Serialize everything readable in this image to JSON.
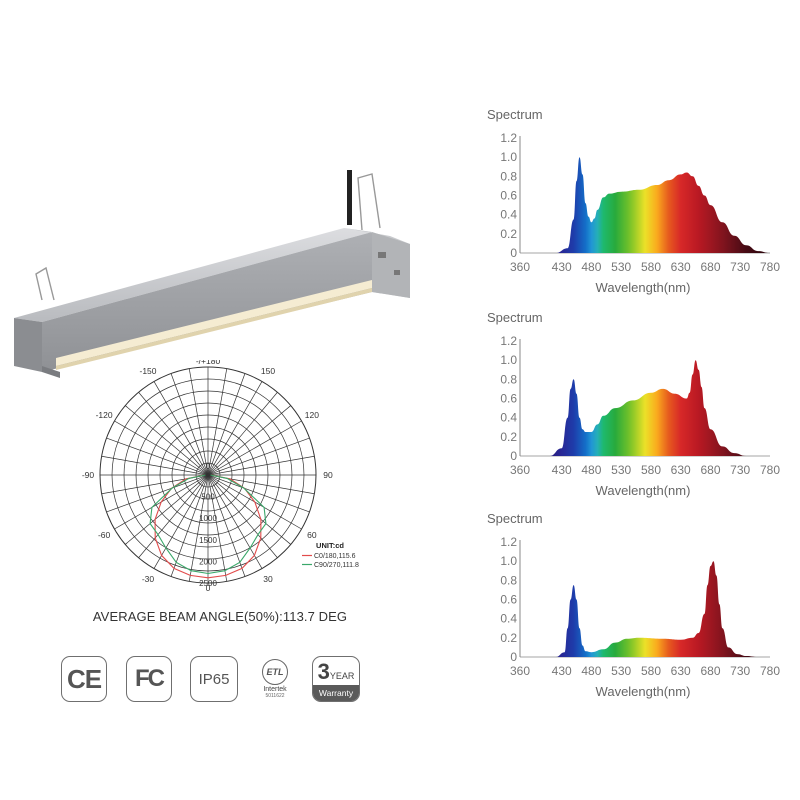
{
  "beam_angle_text": "AVERAGE BEAM ANGLE(50%):113.7 DEG",
  "certifications": {
    "ce": "CE",
    "fc": "FC",
    "ip": "IP65",
    "etl_mark": "ETL",
    "etl_label": "Intertek",
    "etl_number": "5011622",
    "warranty_number": "3",
    "warranty_year": "YEAR",
    "warranty_label": "Warranty"
  },
  "chart_data": [
    {
      "type": "polar",
      "angle_labels": [
        {
          "angle": 180,
          "label": "-/+180"
        },
        {
          "angle": 150,
          "label": "150"
        },
        {
          "angle": 120,
          "label": "120"
        },
        {
          "angle": 90,
          "label": "90"
        },
        {
          "angle": 60,
          "label": "60"
        },
        {
          "angle": 30,
          "label": "30"
        },
        {
          "angle": 0,
          "label": "0"
        },
        {
          "angle": -30,
          "label": "-30"
        },
        {
          "angle": -60,
          "label": "-60"
        },
        {
          "angle": -90,
          "label": "-90"
        },
        {
          "angle": -120,
          "label": "-120"
        },
        {
          "angle": -150,
          "label": "-150"
        }
      ],
      "radial_labels": [
        "0",
        "500",
        "1000",
        "1500",
        "2000",
        "2500"
      ],
      "rmax": 2500,
      "unit_label": "UNIT:cd",
      "series": [
        {
          "name": "C0/180,115.6",
          "color": "#e24b4b",
          "angle": [
            -90,
            -80,
            -70,
            -60,
            -50,
            -40,
            -30,
            -20,
            -10,
            0,
            10,
            20,
            30,
            40,
            50,
            60,
            70,
            80,
            90
          ],
          "r": [
            80,
            520,
            900,
            1250,
            1600,
            1900,
            2150,
            2300,
            2360,
            2380,
            2360,
            2300,
            2150,
            1900,
            1600,
            1250,
            900,
            520,
            80
          ]
        },
        {
          "name": "C90/270,111.8",
          "color": "#3aa86a",
          "angle": [
            -90,
            -80,
            -70,
            -60,
            -50,
            -40,
            -30,
            -20,
            -10,
            0,
            10,
            20,
            30,
            40,
            50,
            60,
            70,
            80,
            90
          ],
          "r": [
            60,
            450,
            880,
            1500,
            1750,
            1800,
            1950,
            2150,
            2250,
            2280,
            2250,
            2150,
            1950,
            1800,
            1750,
            1500,
            880,
            450,
            60
          ]
        }
      ]
    },
    {
      "type": "area",
      "title": "Spectrum",
      "xlabel": "Wavelength(nm)",
      "x_ticks": [
        360,
        430,
        480,
        530,
        580,
        630,
        680,
        730,
        780
      ],
      "y_ticks": [
        "0",
        "0.2",
        "0.4",
        "0.6",
        "0.8",
        "1.0",
        "1.2"
      ],
      "ylim": [
        0,
        1.2
      ],
      "x": [
        420,
        440,
        450,
        455,
        460,
        465,
        470,
        475,
        480,
        485,
        490,
        500,
        510,
        530,
        560,
        590,
        610,
        630,
        640,
        650,
        660,
        670,
        680,
        700,
        720,
        740,
        760,
        780
      ],
      "y": [
        0,
        0.05,
        0.35,
        0.75,
        1.0,
        0.82,
        0.52,
        0.38,
        0.32,
        0.36,
        0.45,
        0.58,
        0.62,
        0.64,
        0.66,
        0.71,
        0.76,
        0.82,
        0.84,
        0.8,
        0.7,
        0.6,
        0.5,
        0.32,
        0.18,
        0.08,
        0.02,
        0
      ]
    },
    {
      "type": "area",
      "title": "Spectrum",
      "xlabel": "Wavelength(nm)",
      "x_ticks": [
        360,
        430,
        480,
        530,
        580,
        630,
        680,
        730,
        780
      ],
      "y_ticks": [
        "0",
        "0.2",
        "0.4",
        "0.6",
        "0.8",
        "1.0",
        "1.2"
      ],
      "ylim": [
        0,
        1.2
      ],
      "x": [
        410,
        430,
        440,
        445,
        450,
        455,
        460,
        465,
        470,
        480,
        490,
        500,
        520,
        550,
        580,
        600,
        620,
        640,
        645,
        650,
        655,
        660,
        665,
        670,
        680,
        700,
        720,
        740
      ],
      "y": [
        0,
        0.08,
        0.4,
        0.7,
        0.8,
        0.65,
        0.4,
        0.28,
        0.25,
        0.25,
        0.33,
        0.42,
        0.5,
        0.58,
        0.66,
        0.7,
        0.65,
        0.6,
        0.66,
        0.85,
        1.0,
        0.9,
        0.72,
        0.5,
        0.28,
        0.1,
        0.03,
        0
      ]
    },
    {
      "type": "area",
      "title": "Spectrum",
      "xlabel": "Wavelength(nm)",
      "x_ticks": [
        360,
        430,
        480,
        530,
        580,
        630,
        680,
        730,
        780
      ],
      "y_ticks": [
        "0",
        "0.2",
        "0.4",
        "0.6",
        "0.8",
        "1.0",
        "1.2"
      ],
      "ylim": [
        0,
        1.2
      ],
      "x": [
        420,
        435,
        440,
        445,
        450,
        455,
        460,
        465,
        470,
        480,
        500,
        520,
        540,
        560,
        600,
        630,
        650,
        660,
        670,
        675,
        680,
        685,
        690,
        695,
        700,
        710,
        725,
        740,
        760
      ],
      "y": [
        0,
        0.05,
        0.3,
        0.6,
        0.75,
        0.6,
        0.3,
        0.12,
        0.06,
        0.05,
        0.08,
        0.15,
        0.19,
        0.2,
        0.19,
        0.18,
        0.2,
        0.25,
        0.45,
        0.75,
        0.95,
        1.0,
        0.85,
        0.55,
        0.3,
        0.1,
        0.03,
        0.01,
        0
      ]
    }
  ]
}
